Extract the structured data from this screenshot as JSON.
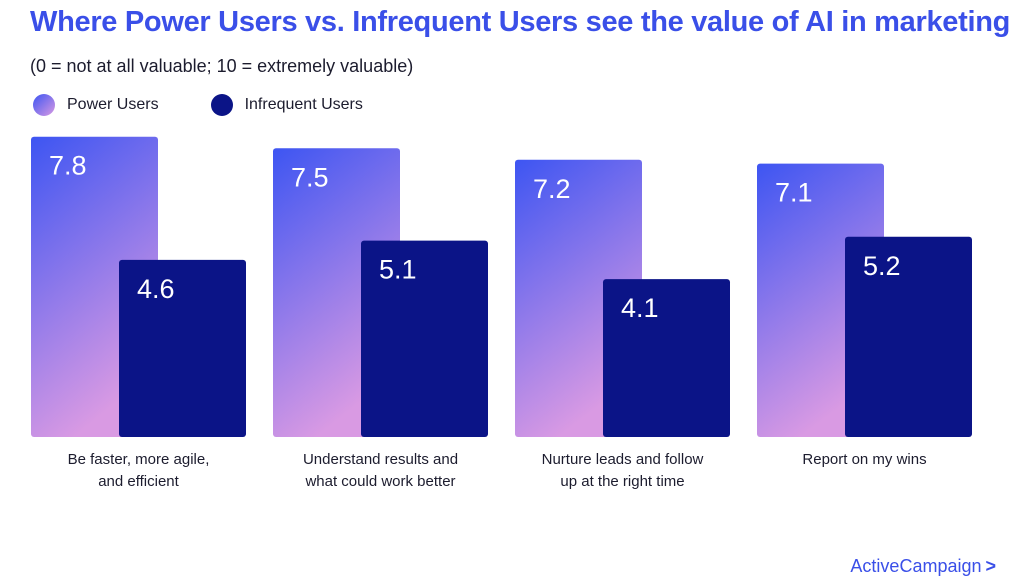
{
  "colors": {
    "power_top": "#3d55f2",
    "power_bottom": "#d99ae3",
    "infrequent": "#0b1487",
    "accent": "#3a4fe8",
    "text": "#1c1c2e"
  },
  "brand": {
    "name": "ActiveCampaign",
    "chevron": ">"
  },
  "chart_data": {
    "type": "bar",
    "title": "Where Power Users vs. Infrequent Users see the value of AI in marketing",
    "subtitle": "(0 = not at all valuable; 10 = extremely valuable)",
    "categories": [
      [
        "Be faster, more agile,",
        "and efficient"
      ],
      [
        "Understand results and",
        "what could work better"
      ],
      [
        "Nurture leads and follow",
        "up at the right time"
      ],
      [
        "Report on my wins"
      ]
    ],
    "series": [
      {
        "name": "Power Users",
        "values": [
          7.8,
          7.5,
          7.2,
          7.1
        ]
      },
      {
        "name": "Infrequent Users",
        "values": [
          4.6,
          5.1,
          4.1,
          5.2
        ]
      }
    ],
    "value_labels": [
      [
        "7.8",
        "4.6"
      ],
      [
        "7.5",
        "5.1"
      ],
      [
        "7.2",
        "4.1"
      ],
      [
        "7.1",
        "5.2"
      ]
    ],
    "ylim": [
      0,
      10
    ],
    "grid": false,
    "legend_position": "top-left"
  }
}
